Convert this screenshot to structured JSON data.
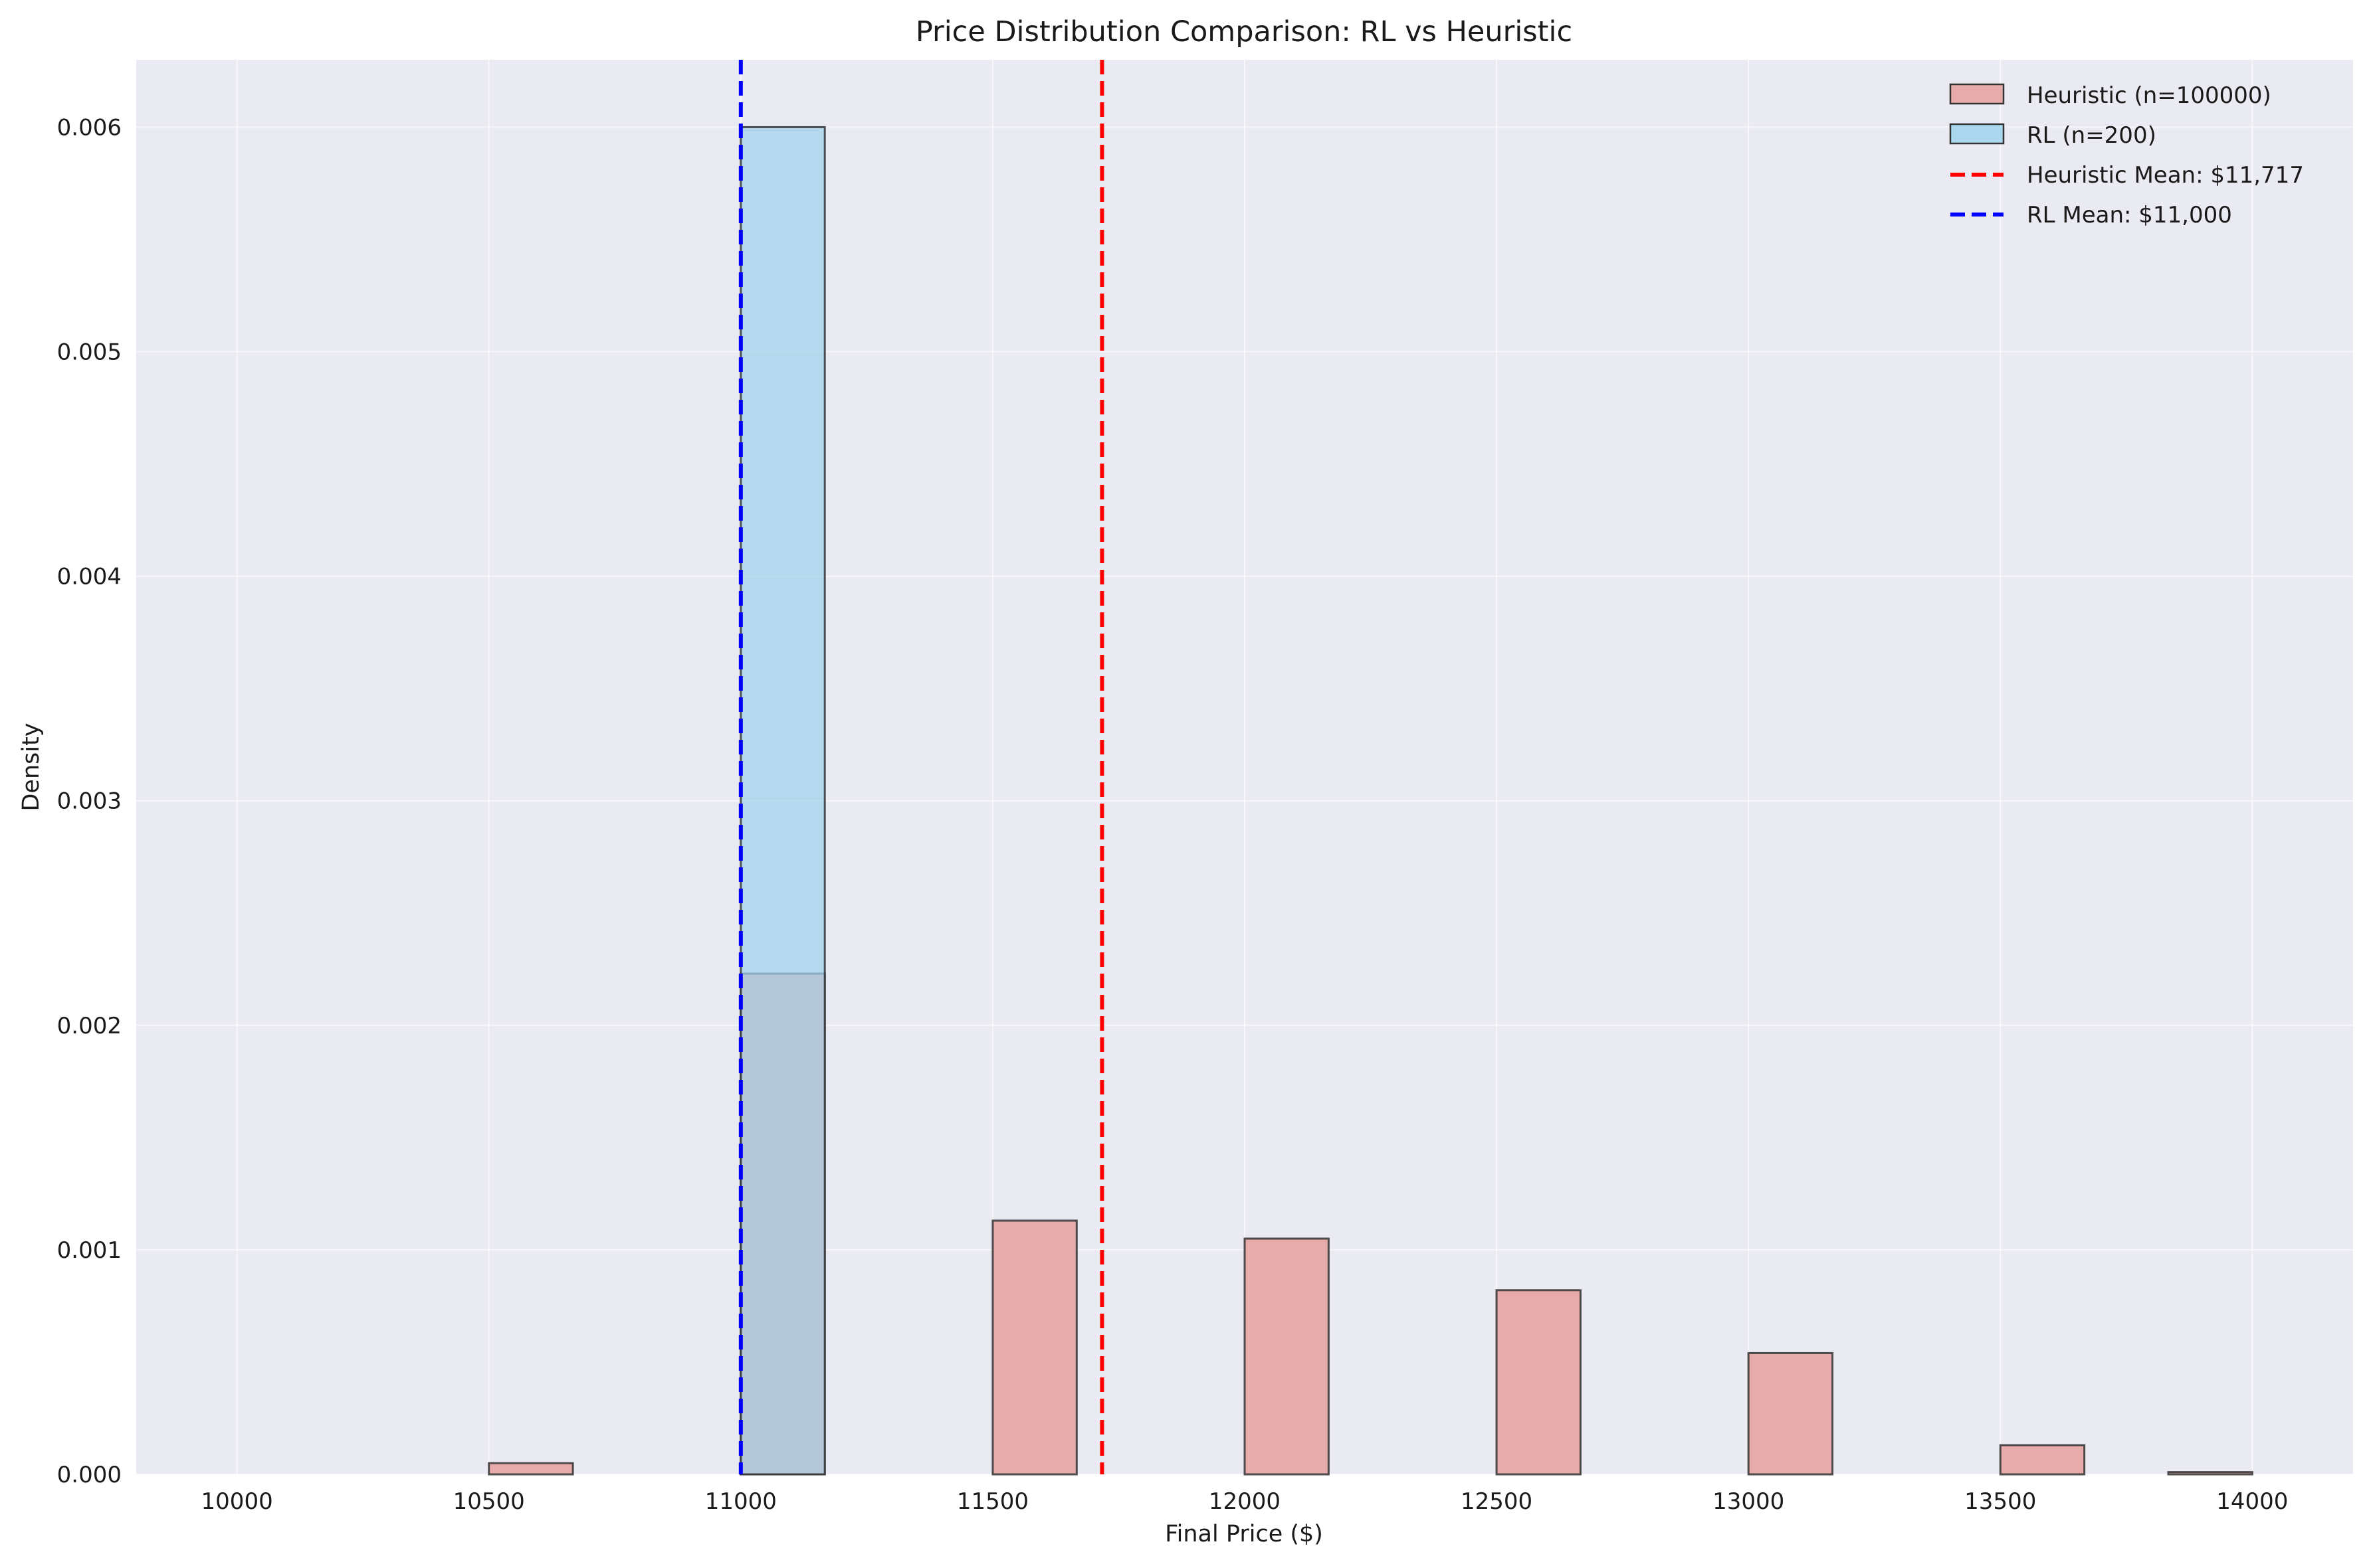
{
  "chart_data": {
    "type": "bar",
    "title": "Price Distribution Comparison: RL vs Heuristic",
    "xlabel": "Final Price ($)",
    "ylabel": "Density",
    "xlim": [
      9800,
      14200
    ],
    "ylim": [
      0,
      0.0063
    ],
    "xticks": [
      10000,
      10500,
      11000,
      11500,
      12000,
      12500,
      13000,
      13500,
      14000
    ],
    "yticks": [
      0.0,
      0.001,
      0.002,
      0.003,
      0.004,
      0.005,
      0.006
    ],
    "ytick_labels": [
      "0.000",
      "0.001",
      "0.002",
      "0.003",
      "0.004",
      "0.005",
      "0.006"
    ],
    "grid": true,
    "legend_position": "top-right",
    "bin_width": 166.67,
    "series": [
      {
        "name": "Heuristic (n=100000)",
        "color": "#e8a0a0",
        "bin_starts": [
          10000,
          10166.67,
          10333.33,
          10500,
          10666.67,
          10833.33,
          11000,
          11166.67,
          11333.33,
          11500,
          11666.67,
          11833.33,
          12000,
          12166.67,
          12333.33,
          12500,
          12666.67,
          12833.33,
          13000,
          13166.67,
          13333.33,
          13500,
          13666.67,
          13833.33
        ],
        "values": [
          0,
          0,
          0,
          5e-05,
          0,
          0,
          0.00223,
          0,
          0,
          0.00113,
          0,
          0,
          0.00105,
          0,
          0,
          0.00082,
          0,
          0,
          0.00054,
          0,
          0,
          0.00013,
          0,
          1e-05
        ]
      },
      {
        "name": "RL (n=200)",
        "color": "#9fd3ec",
        "bin_starts": [
          11000
        ],
        "values": [
          0.006
        ]
      }
    ],
    "mean_lines": [
      {
        "name": "Heuristic Mean: $11,717",
        "x": 11717,
        "color": "#ff0000"
      },
      {
        "name": "RL Mean: $11,000",
        "x": 11000,
        "color": "#0000ff"
      }
    ]
  }
}
